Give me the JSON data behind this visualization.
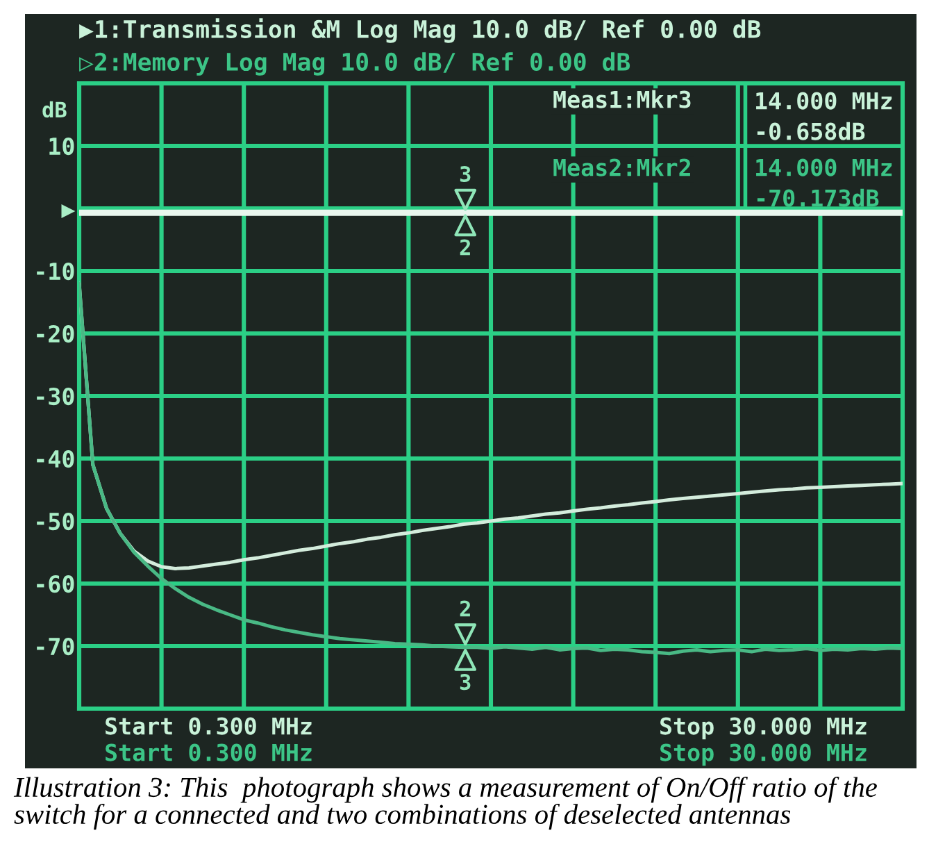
{
  "chart_data": {
    "type": "line",
    "title": "▶1:Transmission &M Log Mag 10.0 dB/ Ref 0.00 dB",
    "subtitle": "▷2:Memory Log Mag 10.0 dB/ Ref 0.00 dB",
    "ylabel": "dB",
    "categories": [
      null,
      null,
      null,
      null,
      null,
      null,
      null,
      null,
      null,
      null,
      null,
      null,
      null,
      null,
      null,
      null,
      null,
      null,
      null,
      null,
      null,
      null,
      null,
      null,
      null,
      null,
      null,
      null,
      null,
      null,
      null,
      null,
      null,
      null,
      null,
      null,
      null,
      null,
      null,
      null,
      null,
      null,
      null,
      null,
      null,
      null,
      null,
      null,
      null,
      null,
      null,
      null,
      null,
      null,
      null,
      null,
      null,
      null,
      null,
      null,
      null
    ],
    "ylim": [
      -80,
      20
    ],
    "yticks": [
      {
        "value": 20,
        "label": null
      },
      10,
      {
        "value": 0,
        "label": "▶"
      },
      -10,
      -20,
      -30,
      -40,
      -50,
      -60,
      -70,
      {
        "value": -80,
        "label": null
      }
    ],
    "tick_labels": "y",
    "grid": true,
    "line_style": "solid",
    "series": [
      {
        "color": "#e9f6ee",
        "values": [
          -0.7,
          -0.7,
          -0.7,
          -0.7,
          -0.7,
          -0.7,
          -0.7,
          -0.7,
          -0.7,
          -0.7,
          -0.7,
          -0.7,
          -0.7,
          -0.7,
          -0.7,
          -0.7,
          -0.7,
          -0.7,
          -0.7,
          -0.7,
          -0.7,
          -0.7,
          -0.7,
          -0.7,
          -0.7,
          -0.7,
          -0.7,
          -0.7,
          -0.66,
          -0.7,
          -0.7,
          -0.7,
          -0.7,
          -0.7,
          -0.7,
          -0.7,
          -0.7,
          -0.7,
          -0.7,
          -0.7,
          -0.7,
          -0.7,
          -0.7,
          -0.7,
          -0.7,
          -0.7,
          -0.7,
          -0.7,
          -0.7,
          -0.7,
          -0.7,
          -0.7,
          -0.7,
          -0.7,
          -0.7,
          -0.7,
          -0.7,
          -0.7,
          -0.7,
          -0.7,
          -0.7
        ]
      },
      {
        "color": "#d3ecdc",
        "values": [
          -12,
          -41,
          -48,
          -52,
          -54.8,
          -56.4,
          -57.3,
          -57.6,
          -57.5,
          -57.2,
          -56.9,
          -56.6,
          -56.2,
          -55.9,
          -55.5,
          -55.1,
          -54.7,
          -54.4,
          -54.0,
          -53.6,
          -53.3,
          -52.9,
          -52.6,
          -52.2,
          -51.9,
          -51.5,
          -51.2,
          -50.9,
          -50.5,
          -50.3,
          -50.0,
          -49.7,
          -49.5,
          -49.2,
          -48.9,
          -48.7,
          -48.4,
          -48.1,
          -47.9,
          -47.6,
          -47.4,
          -47.1,
          -46.9,
          -46.6,
          -46.4,
          -46.2,
          -46.0,
          -45.8,
          -45.6,
          -45.4,
          -45.2,
          -45.0,
          -44.9,
          -44.7,
          -44.6,
          -44.5,
          -44.4,
          -44.3,
          -44.2,
          -44.1,
          -44.0
        ]
      },
      {
        "color": "#49b985",
        "values": [
          -12,
          -41,
          -48,
          -52,
          -55,
          -57.2,
          -59.2,
          -60.8,
          -62.2,
          -63.3,
          -64.2,
          -65,
          -65.8,
          -66.3,
          -66.9,
          -67.4,
          -67.8,
          -68.2,
          -68.5,
          -68.8,
          -69,
          -69.2,
          -69.4,
          -69.6,
          -69.7,
          -69.8,
          -70,
          -70.1,
          -70.2,
          -70.2,
          -70.4,
          -70.1,
          -70.3,
          -70.5,
          -70.2,
          -70.6,
          -70.4,
          -70.3,
          -70.7,
          -70.5,
          -70.6,
          -70.9,
          -71,
          -71.2,
          -70.8,
          -70.6,
          -70.9,
          -70.7,
          -70.6,
          -70.9,
          -70.5,
          -70.7,
          -70.6,
          -70.4,
          -70.7,
          -70.5,
          -70.6,
          -70.4,
          -70.5,
          -70.3,
          -70.4
        ]
      }
    ],
    "annotations": [
      "Meas1:Mkr3",
      "14.000 MHz",
      "-0.658dB",
      "Meas2:Mkr2",
      "14.000 MHz",
      "-70.173dB",
      "Start 0.300 MHz",
      "Start 0.300 MHz",
      "Stop 30.000 MHz",
      "Stop 30.000 MHz",
      "Illustration 3: This  photograph shows a measurement of On/Off ratio of the switch for a connected and two combinations of deselected antennas",
      {
        "text": "3",
        "y": -0.658
      },
      {
        "text": "2",
        "y": -0.658
      },
      {
        "text": "2",
        "y": -70.173
      },
      {
        "text": "3",
        "y": -70.173
      }
    ]
  }
}
